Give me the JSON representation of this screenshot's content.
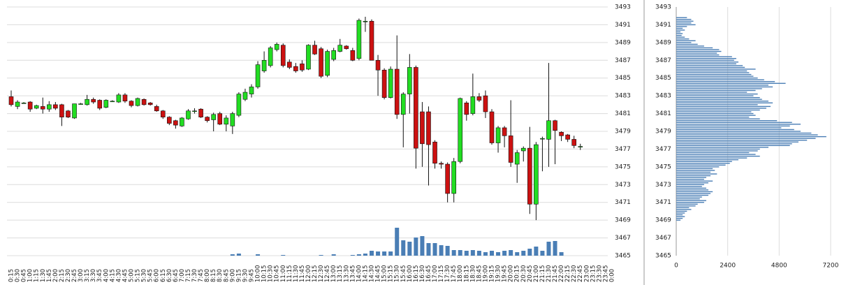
{
  "chart_data": [
    {
      "type": "candlestick",
      "categories": [
        "0:15",
        "0:30",
        "0:45",
        "1:00",
        "1:15",
        "1:30",
        "1:45",
        "2:00",
        "2:15",
        "2:30",
        "2:45",
        "3:00",
        "3:15",
        "3:30",
        "3:45",
        "4:00",
        "4:15",
        "4:30",
        "4:45",
        "5:00",
        "5:15",
        "5:30",
        "5:45",
        "6:00",
        "6:15",
        "6:30",
        "6:45",
        "7:00",
        "7:15",
        "7:30",
        "7:45",
        "8:00",
        "8:15",
        "8:30",
        "8:45",
        "9:00",
        "9:15",
        "9:30",
        "9:45",
        "10:00",
        "10:15",
        "10:30",
        "10:45",
        "11:00",
        "11:15",
        "11:30",
        "11:45",
        "12:00",
        "12:15",
        "12:30",
        "12:45",
        "13:00",
        "13:15",
        "13:30",
        "13:45",
        "14:00",
        "14:15",
        "14:30",
        "14:45",
        "15:00",
        "15:15",
        "15:30",
        "15:45",
        "16:00",
        "16:15",
        "16:30",
        "16:45",
        "17:00",
        "17:15",
        "17:30",
        "17:45",
        "18:00",
        "18:15",
        "18:30",
        "18:45",
        "19:00",
        "19:15",
        "19:30",
        "19:45",
        "20:00",
        "20:15",
        "20:30",
        "20:45",
        "21:00",
        "21:15",
        "21:30",
        "21:45",
        "22:00",
        "22:15",
        "22:30",
        "22:45",
        "23:00",
        "23:15",
        "23:30",
        "23:45",
        "0:00"
      ],
      "open": [
        3482.9,
        3481.8,
        3482.2,
        3482.3,
        3481.6,
        3481.8,
        3481.5,
        3482.0,
        3482.0,
        3481.3,
        3480.5,
        3482.1,
        3482.0,
        3482.6,
        3482.5,
        3481.7,
        3482.4,
        3482.3,
        3483.1,
        3482.4,
        3481.9,
        3482.6,
        3482.2,
        3481.8,
        3481.3,
        3480.6,
        3480.2,
        3479.6,
        3480.4,
        3481.3,
        3481.5,
        3480.6,
        3480.3,
        3481.0,
        3479.8,
        3479.6,
        3480.8,
        3482.6,
        3483.2,
        3484.0,
        3485.8,
        3486.4,
        3488.2,
        3488.7,
        3486.8,
        3486.3,
        3486.6,
        3486.0,
        3488.7,
        3488.3,
        3485.3,
        3487.1,
        3488.0,
        3488.6,
        3488.1,
        3487.2,
        3491.4,
        3491.4,
        3487.0,
        3485.9,
        3482.8,
        3486.0,
        3480.9,
        3483.2,
        3486.2,
        3481.2,
        3481.2,
        3477.8,
        3475.4,
        3475.3,
        3472.0,
        3475.6,
        3482.2,
        3481.0,
        3482.9,
        3483.0,
        3481.2,
        3477.7,
        3479.4,
        3478.5,
        3475.3,
        3476.8,
        3477.1,
        3470.8,
        3478.2,
        3478.1,
        3480.2,
        3478.9,
        3478.6,
        3478.1,
        3477.3,
        null,
        null,
        null,
        null,
        null
      ],
      "high": [
        3483.6,
        3482.5,
        3482.3,
        3482.4,
        3482.0,
        3482.8,
        3482.4,
        3482.3,
        3482.1,
        3481.4,
        3482.1,
        3482.2,
        3483.1,
        3482.8,
        3482.6,
        3482.6,
        3482.5,
        3483.3,
        3483.3,
        3482.5,
        3482.8,
        3482.7,
        3482.3,
        3482.0,
        3481.4,
        3480.7,
        3480.3,
        3480.6,
        3481.5,
        3481.6,
        3481.6,
        3480.7,
        3481.1,
        3481.2,
        3480.8,
        3481.2,
        3483.4,
        3483.8,
        3484.3,
        3486.9,
        3488.0,
        3488.6,
        3489.0,
        3488.9,
        3487.1,
        3486.7,
        3487.0,
        3488.8,
        3489.2,
        3488.5,
        3488.2,
        3488.4,
        3489.4,
        3488.7,
        3488.4,
        3491.7,
        3491.9,
        3491.6,
        3487.6,
        3486.1,
        3486.3,
        3489.8,
        3483.4,
        3487.7,
        3486.4,
        3482.3,
        3481.8,
        3478.0,
        3475.6,
        3475.5,
        3476.0,
        3482.8,
        3482.4,
        3485.5,
        3483.3,
        3483.6,
        3481.5,
        3479.6,
        3479.6,
        3482.5,
        3476.9,
        3477.3,
        3479.5,
        3477.8,
        3478.4,
        3486.7,
        3480.3,
        3479.0,
        3478.7,
        3478.5,
        3477.6,
        null,
        null,
        null,
        null,
        null
      ],
      "low": [
        3481.8,
        3481.5,
        3482.1,
        3481.2,
        3481.5,
        3481.0,
        3481.2,
        3481.4,
        3479.6,
        3480.5,
        3480.4,
        3482.0,
        3481.9,
        3482.1,
        3481.4,
        3481.6,
        3482.3,
        3482.2,
        3482.2,
        3481.7,
        3481.8,
        3481.9,
        3481.9,
        3481.2,
        3480.4,
        3479.7,
        3479.3,
        3479.5,
        3480.3,
        3481.0,
        3480.5,
        3480.0,
        3479.0,
        3479.7,
        3479.0,
        3478.7,
        3480.6,
        3482.4,
        3482.8,
        3483.8,
        3485.6,
        3486.2,
        3488.0,
        3486.2,
        3486.0,
        3485.6,
        3485.7,
        3485.9,
        3487.6,
        3485.0,
        3485.1,
        3486.9,
        3487.9,
        3488.2,
        3486.9,
        3487.0,
        3490.2,
        3487.0,
        3483.0,
        3482.6,
        3482.7,
        3480.4,
        3477.2,
        3481.0,
        3474.8,
        3475.0,
        3472.9,
        3474.8,
        3474.8,
        3471.0,
        3471.0,
        3475.4,
        3480.2,
        3480.8,
        3482.3,
        3480.5,
        3477.5,
        3476.6,
        3477.2,
        3475.0,
        3473.2,
        3475.6,
        3469.7,
        3469.0,
        3474.5,
        3475.0,
        3475.3,
        3477.9,
        3477.8,
        3477.1,
        3476.9,
        null,
        null,
        null,
        null,
        null
      ],
      "close": [
        3482.0,
        3482.3,
        3482.2,
        3481.5,
        3481.9,
        3481.5,
        3482.0,
        3481.6,
        3480.6,
        3480.6,
        3482.1,
        3482.1,
        3482.6,
        3482.3,
        3481.6,
        3482.5,
        3482.4,
        3483.1,
        3482.4,
        3481.9,
        3482.7,
        3482.0,
        3482.0,
        3481.3,
        3480.6,
        3479.9,
        3479.7,
        3480.5,
        3481.3,
        3481.3,
        3480.6,
        3480.2,
        3480.9,
        3479.8,
        3480.5,
        3481.0,
        3483.2,
        3483.4,
        3484.0,
        3486.5,
        3487.0,
        3488.4,
        3488.8,
        3486.4,
        3486.2,
        3485.8,
        3485.9,
        3488.7,
        3487.7,
        3485.2,
        3488.0,
        3488.1,
        3488.7,
        3488.3,
        3487.0,
        3491.5,
        3491.4,
        3487.0,
        3485.9,
        3482.8,
        3486.0,
        3480.9,
        3483.2,
        3486.2,
        3477.1,
        3477.6,
        3477.5,
        3475.4,
        3475.3,
        3472.0,
        3475.6,
        3482.7,
        3480.9,
        3482.9,
        3482.5,
        3481.2,
        3477.7,
        3479.4,
        3478.5,
        3475.5,
        3476.6,
        3477.1,
        3470.8,
        3477.5,
        3478.2,
        3480.2,
        3479.1,
        3478.5,
        3478.1,
        3477.4,
        3477.3,
        null,
        null,
        null,
        null,
        null
      ],
      "volume": [
        0,
        0,
        0,
        0,
        0,
        0,
        0,
        0,
        0,
        0,
        0,
        0,
        0,
        0,
        0,
        0,
        0,
        0,
        0,
        0,
        0,
        0,
        0,
        0,
        0,
        0,
        0,
        0,
        0,
        0,
        0,
        0,
        0,
        0,
        0,
        2,
        3,
        0,
        0,
        2,
        0,
        0,
        0,
        1,
        0,
        0,
        0,
        0,
        0,
        1,
        0,
        2,
        0,
        0,
        1,
        2,
        3,
        7,
        6,
        6,
        6,
        40,
        22,
        20,
        26,
        28,
        18,
        18,
        15,
        14,
        8,
        8,
        7,
        8,
        7,
        5,
        7,
        5,
        7,
        8,
        5,
        7,
        10,
        13,
        7,
        20,
        21,
        5,
        0,
        0,
        0,
        null,
        null,
        null,
        null,
        null
      ],
      "up_color": "#22dd22",
      "down_color": "#cc1111",
      "volume_color": "#4a7eb5",
      "ylim": [
        3465,
        3493
      ],
      "yticks": [
        3465,
        3467,
        3469,
        3471,
        3473,
        3475,
        3477,
        3479,
        3481,
        3483,
        3485,
        3487,
        3489,
        3491,
        3493
      ],
      "grid": true
    },
    {
      "type": "barh",
      "prices": [
        3491.8,
        3491.6,
        3491.4,
        3491.2,
        3491.0,
        3490.8,
        3490.6,
        3490.4,
        3490.2,
        3490.0,
        3489.8,
        3489.6,
        3489.4,
        3489.2,
        3489.0,
        3488.8,
        3488.6,
        3488.4,
        3488.2,
        3488.0,
        3487.8,
        3487.6,
        3487.4,
        3487.2,
        3487.0,
        3486.8,
        3486.6,
        3486.4,
        3486.2,
        3486.0,
        3485.8,
        3485.6,
        3485.4,
        3485.2,
        3485.0,
        3484.8,
        3484.6,
        3484.4,
        3484.2,
        3484.0,
        3483.8,
        3483.6,
        3483.4,
        3483.2,
        3483.0,
        3482.8,
        3482.6,
        3482.4,
        3482.2,
        3482.0,
        3481.8,
        3481.6,
        3481.4,
        3481.2,
        3481.0,
        3480.8,
        3480.6,
        3480.4,
        3480.2,
        3480.0,
        3479.8,
        3479.6,
        3479.4,
        3479.2,
        3479.0,
        3478.8,
        3478.6,
        3478.4,
        3478.2,
        3478.0,
        3477.8,
        3477.6,
        3477.4,
        3477.2,
        3477.0,
        3476.8,
        3476.6,
        3476.4,
        3476.2,
        3476.0,
        3475.8,
        3475.6,
        3475.4,
        3475.2,
        3475.0,
        3474.8,
        3474.6,
        3474.4,
        3474.2,
        3474.0,
        3473.8,
        3473.6,
        3473.4,
        3473.2,
        3473.0,
        3472.8,
        3472.6,
        3472.4,
        3472.2,
        3472.0,
        3471.8,
        3471.6,
        3471.4,
        3471.2,
        3471.0,
        3470.8,
        3470.6,
        3470.4,
        3470.2,
        3470.0,
        3469.8,
        3469.6,
        3469.4,
        3469.2,
        3469.0
      ],
      "values": [
        500,
        700,
        800,
        700,
        900,
        500,
        300,
        400,
        200,
        300,
        250,
        400,
        600,
        900,
        700,
        1000,
        1300,
        1700,
        2000,
        2100,
        1900,
        2000,
        2600,
        2800,
        2700,
        2900,
        2800,
        3100,
        3200,
        3700,
        3300,
        3400,
        3500,
        3600,
        3800,
        4100,
        4600,
        5100,
        4300,
        4500,
        4000,
        3700,
        3300,
        3800,
        3600,
        3900,
        4000,
        4300,
        4500,
        3800,
        4400,
        4200,
        3900,
        3500,
        3600,
        3700,
        3400,
        3900,
        4700,
        5400,
        5800,
        5300,
        4900,
        5500,
        5800,
        6300,
        6600,
        7000,
        6500,
        6100,
        5700,
        5400,
        5300,
        4300,
        3900,
        3800,
        3400,
        3700,
        3900,
        3300,
        2900,
        2600,
        2500,
        2300,
        2000,
        1700,
        1800,
        1600,
        1900,
        1600,
        1400,
        1300,
        1700,
        1500,
        1300,
        1200,
        1400,
        1500,
        1700,
        1600,
        1500,
        1200,
        1100,
        1400,
        1300,
        1000,
        900,
        600,
        700,
        500,
        400,
        300,
        400,
        300,
        200
      ],
      "color": "#4a7eb5",
      "xlim": [
        0,
        7200
      ],
      "xticks": [
        0,
        2400,
        4800,
        7200
      ],
      "ylim": [
        3465,
        3493
      ],
      "yticks": [
        3465,
        3467,
        3469,
        3471,
        3473,
        3475,
        3477,
        3479,
        3481,
        3483,
        3485,
        3487,
        3489,
        3491,
        3493
      ],
      "grid": true
    }
  ]
}
